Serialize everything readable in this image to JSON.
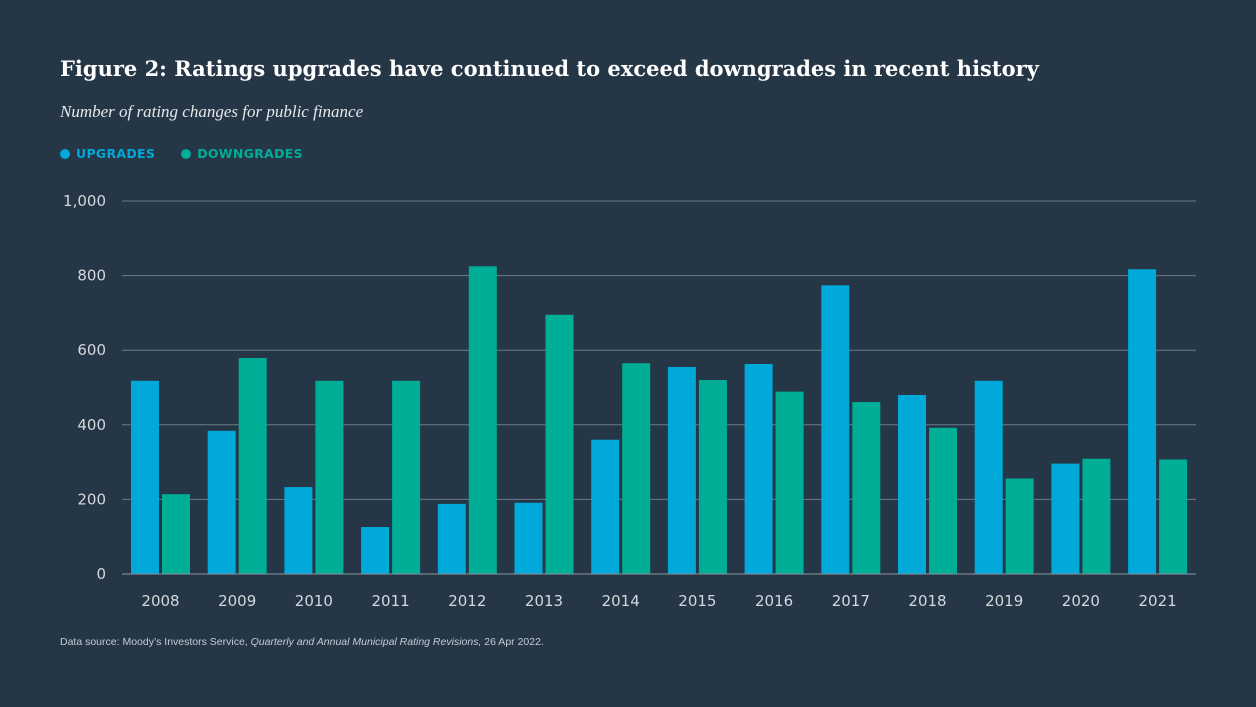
{
  "title": "Figure 2: Ratings upgrades have continued to exceed downgrades in recent history",
  "subtitle": "Number of rating changes for public finance",
  "legend": {
    "upgrades": "UPGRADES",
    "downgrades": "DOWNGRADES"
  },
  "colors": {
    "upgrades": "#00a9d9",
    "downgrades": "#00ad96",
    "grid": "#6b7a88",
    "tick": "#d3d8dd"
  },
  "source": {
    "prefix": "Data source: Moody’s Investors Service, ",
    "publication": "Quarterly and Annual Municipal Rating Revisions,",
    "date": " 26 Apr 2022."
  },
  "chart_data": {
    "type": "bar",
    "title": "Figure 2: Ratings upgrades have continued to exceed downgrades in recent history",
    "subtitle": "Number of rating changes for public finance",
    "xlabel": "",
    "ylabel": "",
    "ylim": [
      0,
      1000
    ],
    "yticks": [
      0,
      200,
      400,
      600,
      800,
      1000
    ],
    "ytick_labels": [
      "0",
      "200",
      "400",
      "600",
      "800",
      "1,000"
    ],
    "grid": true,
    "legend_position": "top-left",
    "categories": [
      "2008",
      "2009",
      "2010",
      "2011",
      "2012",
      "2013",
      "2014",
      "2015",
      "2016",
      "2017",
      "2018",
      "2019",
      "2020",
      "2021"
    ],
    "series": [
      {
        "name": "UPGRADES",
        "key": "upgrades",
        "values": [
          518,
          384,
          233,
          126,
          188,
          191,
          360,
          555,
          563,
          774,
          480,
          518,
          296,
          817
        ]
      },
      {
        "name": "DOWNGRADES",
        "key": "downgrades",
        "values": [
          214,
          579,
          518,
          518,
          825,
          695,
          565,
          520,
          489,
          461,
          392,
          256,
          309,
          307
        ]
      }
    ]
  }
}
